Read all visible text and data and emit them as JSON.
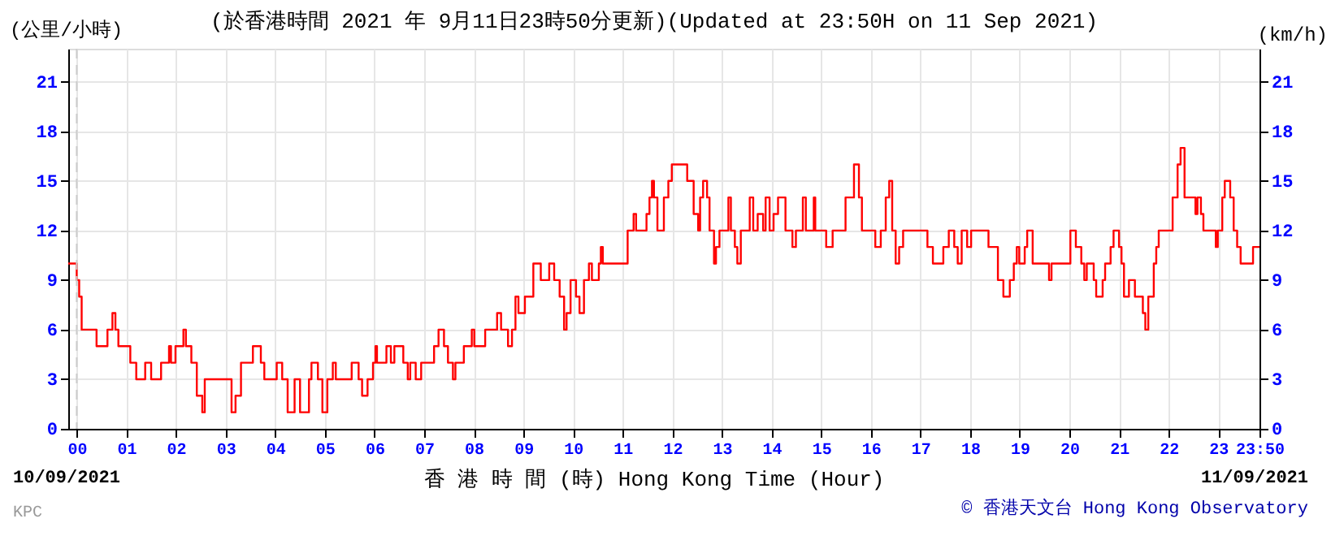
{
  "chart_data": {
    "type": "step",
    "title": "(於香港時間 2021 年 9月11日23時50分更新)(Updated at 23:50H on 11 Sep 2021)",
    "ylabel": "(公里/小時)",
    "y2label": "(km/h)",
    "xlabel": "香 港 時 間 (時) Hong Kong Time (Hour)",
    "annotations": [
      "10/09/2021",
      "11/09/2021",
      "© 香港天文台 Hong Kong Observatory",
      "KPC"
    ],
    "series": [
      {
        "color": "#ff0000",
        "x": [
          -0.17,
          0.0,
          0.05,
          0.1,
          0.4,
          0.62,
          0.72,
          0.78,
          0.84,
          1.08,
          1.2,
          1.38,
          1.5,
          1.7,
          1.86,
          1.9,
          1.99,
          2.15,
          2.2,
          2.31,
          2.42,
          2.53,
          2.58,
          3.12,
          3.2,
          3.31,
          3.55,
          3.71,
          3.78,
          4.03,
          4.14,
          4.25,
          4.39,
          4.5,
          4.68,
          4.73,
          4.86,
          4.95,
          5.05,
          5.16,
          5.22,
          5.54,
          5.68,
          5.75,
          5.86,
          5.97,
          6.02,
          6.05,
          6.24,
          6.33,
          6.4,
          6.58,
          6.67,
          6.72,
          6.83,
          6.94,
          7.2,
          7.29,
          7.4,
          7.48,
          7.58,
          7.63,
          7.8,
          7.96,
          8.01,
          8.23,
          8.47,
          8.55,
          8.69,
          8.77,
          8.84,
          8.9,
          9.03,
          9.2,
          9.35,
          9.52,
          9.62,
          9.73,
          9.82,
          9.87,
          9.95,
          10.06,
          10.13,
          10.22,
          10.32,
          10.38,
          10.52,
          10.56,
          10.6,
          11.1,
          11.22,
          11.27,
          11.48,
          11.54,
          11.59,
          11.63,
          11.7,
          11.83,
          11.92,
          11.99,
          12.3,
          12.43,
          12.52,
          12.56,
          12.62,
          12.7,
          12.75,
          12.84,
          12.88,
          12.95,
          13.13,
          13.18,
          13.26,
          13.31,
          13.38,
          13.56,
          13.63,
          13.72,
          13.83,
          13.88,
          13.96,
          14.04,
          14.13,
          14.28,
          14.42,
          14.49,
          14.63,
          14.69,
          14.85,
          14.88,
          15.1,
          15.23,
          15.49,
          15.66,
          15.76,
          15.82,
          16.09,
          16.2,
          16.3,
          16.37,
          16.43,
          16.5,
          16.57,
          16.65,
          17.14,
          17.25,
          17.46,
          17.57,
          17.68,
          17.75,
          17.83,
          17.94,
          18.02,
          18.37,
          18.56,
          18.67,
          18.8,
          18.88,
          18.94,
          18.99,
          19.1,
          19.15,
          19.26,
          19.59,
          19.64,
          20.02,
          20.13,
          20.24,
          20.3,
          20.35,
          20.49,
          20.54,
          20.67,
          20.72,
          20.83,
          20.89,
          21.0,
          21.05,
          21.1,
          21.2,
          21.32,
          21.48,
          21.53,
          21.59,
          21.7,
          21.75,
          21.8,
          22.08,
          22.18,
          22.24,
          22.32,
          22.54,
          22.58,
          22.65,
          22.7,
          22.95,
          22.99,
          23.08,
          23.13,
          23.24,
          23.31,
          23.38,
          23.45,
          23.7,
          23.83
        ],
        "values": [
          10,
          9,
          8,
          6,
          5,
          6,
          7,
          6,
          5,
          4,
          3,
          4,
          3,
          4,
          5,
          4,
          5,
          6,
          5,
          4,
          2,
          1,
          3,
          1,
          2,
          4,
          5,
          4,
          3,
          4,
          3,
          1,
          3,
          1,
          3,
          4,
          3,
          1,
          3,
          4,
          3,
          4,
          3,
          2,
          3,
          4,
          5,
          4,
          5,
          4,
          5,
          4,
          3,
          4,
          3,
          4,
          5,
          6,
          5,
          4,
          3,
          4,
          5,
          6,
          5,
          6,
          7,
          6,
          5,
          6,
          8,
          7,
          8,
          10,
          9,
          10,
          9,
          8,
          6,
          7,
          9,
          8,
          7,
          9,
          10,
          9,
          10,
          11,
          10,
          12,
          13,
          12,
          13,
          14,
          15,
          14,
          12,
          14,
          15,
          16,
          15,
          13,
          12,
          14,
          15,
          14,
          12,
          10,
          11,
          12,
          14,
          12,
          11,
          10,
          12,
          14,
          12,
          13,
          12,
          14,
          12,
          13,
          14,
          12,
          11,
          12,
          14,
          12,
          14,
          12,
          11,
          12,
          14,
          16,
          14,
          12,
          11,
          12,
          14,
          15,
          12,
          10,
          11,
          12,
          11,
          10,
          11,
          12,
          11,
          10,
          12,
          11,
          12,
          11,
          9,
          8,
          9,
          10,
          11,
          10,
          11,
          12,
          10,
          9,
          10,
          12,
          11,
          10,
          9,
          10,
          9,
          8,
          9,
          10,
          11,
          12,
          11,
          10,
          8,
          9,
          8,
          7,
          6,
          8,
          10,
          11,
          12,
          14,
          16,
          17,
          14,
          13,
          14,
          13,
          12,
          11,
          12,
          14,
          15,
          14,
          12,
          11,
          10,
          11,
          11
        ]
      }
    ],
    "xlim": [
      -0.17,
      23.83
    ],
    "xticks": [
      {
        "value": 0,
        "label": "00"
      },
      {
        "value": 1,
        "label": "01"
      },
      {
        "value": 2,
        "label": "02"
      },
      {
        "value": 3,
        "label": "03"
      },
      {
        "value": 4,
        "label": "04"
      },
      {
        "value": 5,
        "label": "05"
      },
      {
        "value": 6,
        "label": "06"
      },
      {
        "value": 7,
        "label": "07"
      },
      {
        "value": 8,
        "label": "08"
      },
      {
        "value": 9,
        "label": "09"
      },
      {
        "value": 10,
        "label": "10"
      },
      {
        "value": 11,
        "label": "11"
      },
      {
        "value": 12,
        "label": "12"
      },
      {
        "value": 13,
        "label": "13"
      },
      {
        "value": 14,
        "label": "14"
      },
      {
        "value": 15,
        "label": "15"
      },
      {
        "value": 16,
        "label": "16"
      },
      {
        "value": 17,
        "label": "17"
      },
      {
        "value": 18,
        "label": "18"
      },
      {
        "value": 19,
        "label": "19"
      },
      {
        "value": 20,
        "label": "20"
      },
      {
        "value": 21,
        "label": "21"
      },
      {
        "value": 22,
        "label": "22"
      },
      {
        "value": 23,
        "label": "23"
      },
      {
        "value": 23.83,
        "label": "23:50"
      }
    ],
    "ylim": [
      0,
      23
    ],
    "yticks": [
      0,
      3,
      6,
      9,
      12,
      15,
      18,
      21
    ],
    "y2lim": [
      0,
      23
    ],
    "y2ticks": [
      0,
      3,
      6,
      9,
      12,
      15,
      18,
      21
    ],
    "ref_lines": [
      {
        "axis": "x",
        "value": 0,
        "line_style": "dashed",
        "color": "#cccccc"
      }
    ],
    "grid": true,
    "marker": "none",
    "line_style": "solid"
  }
}
